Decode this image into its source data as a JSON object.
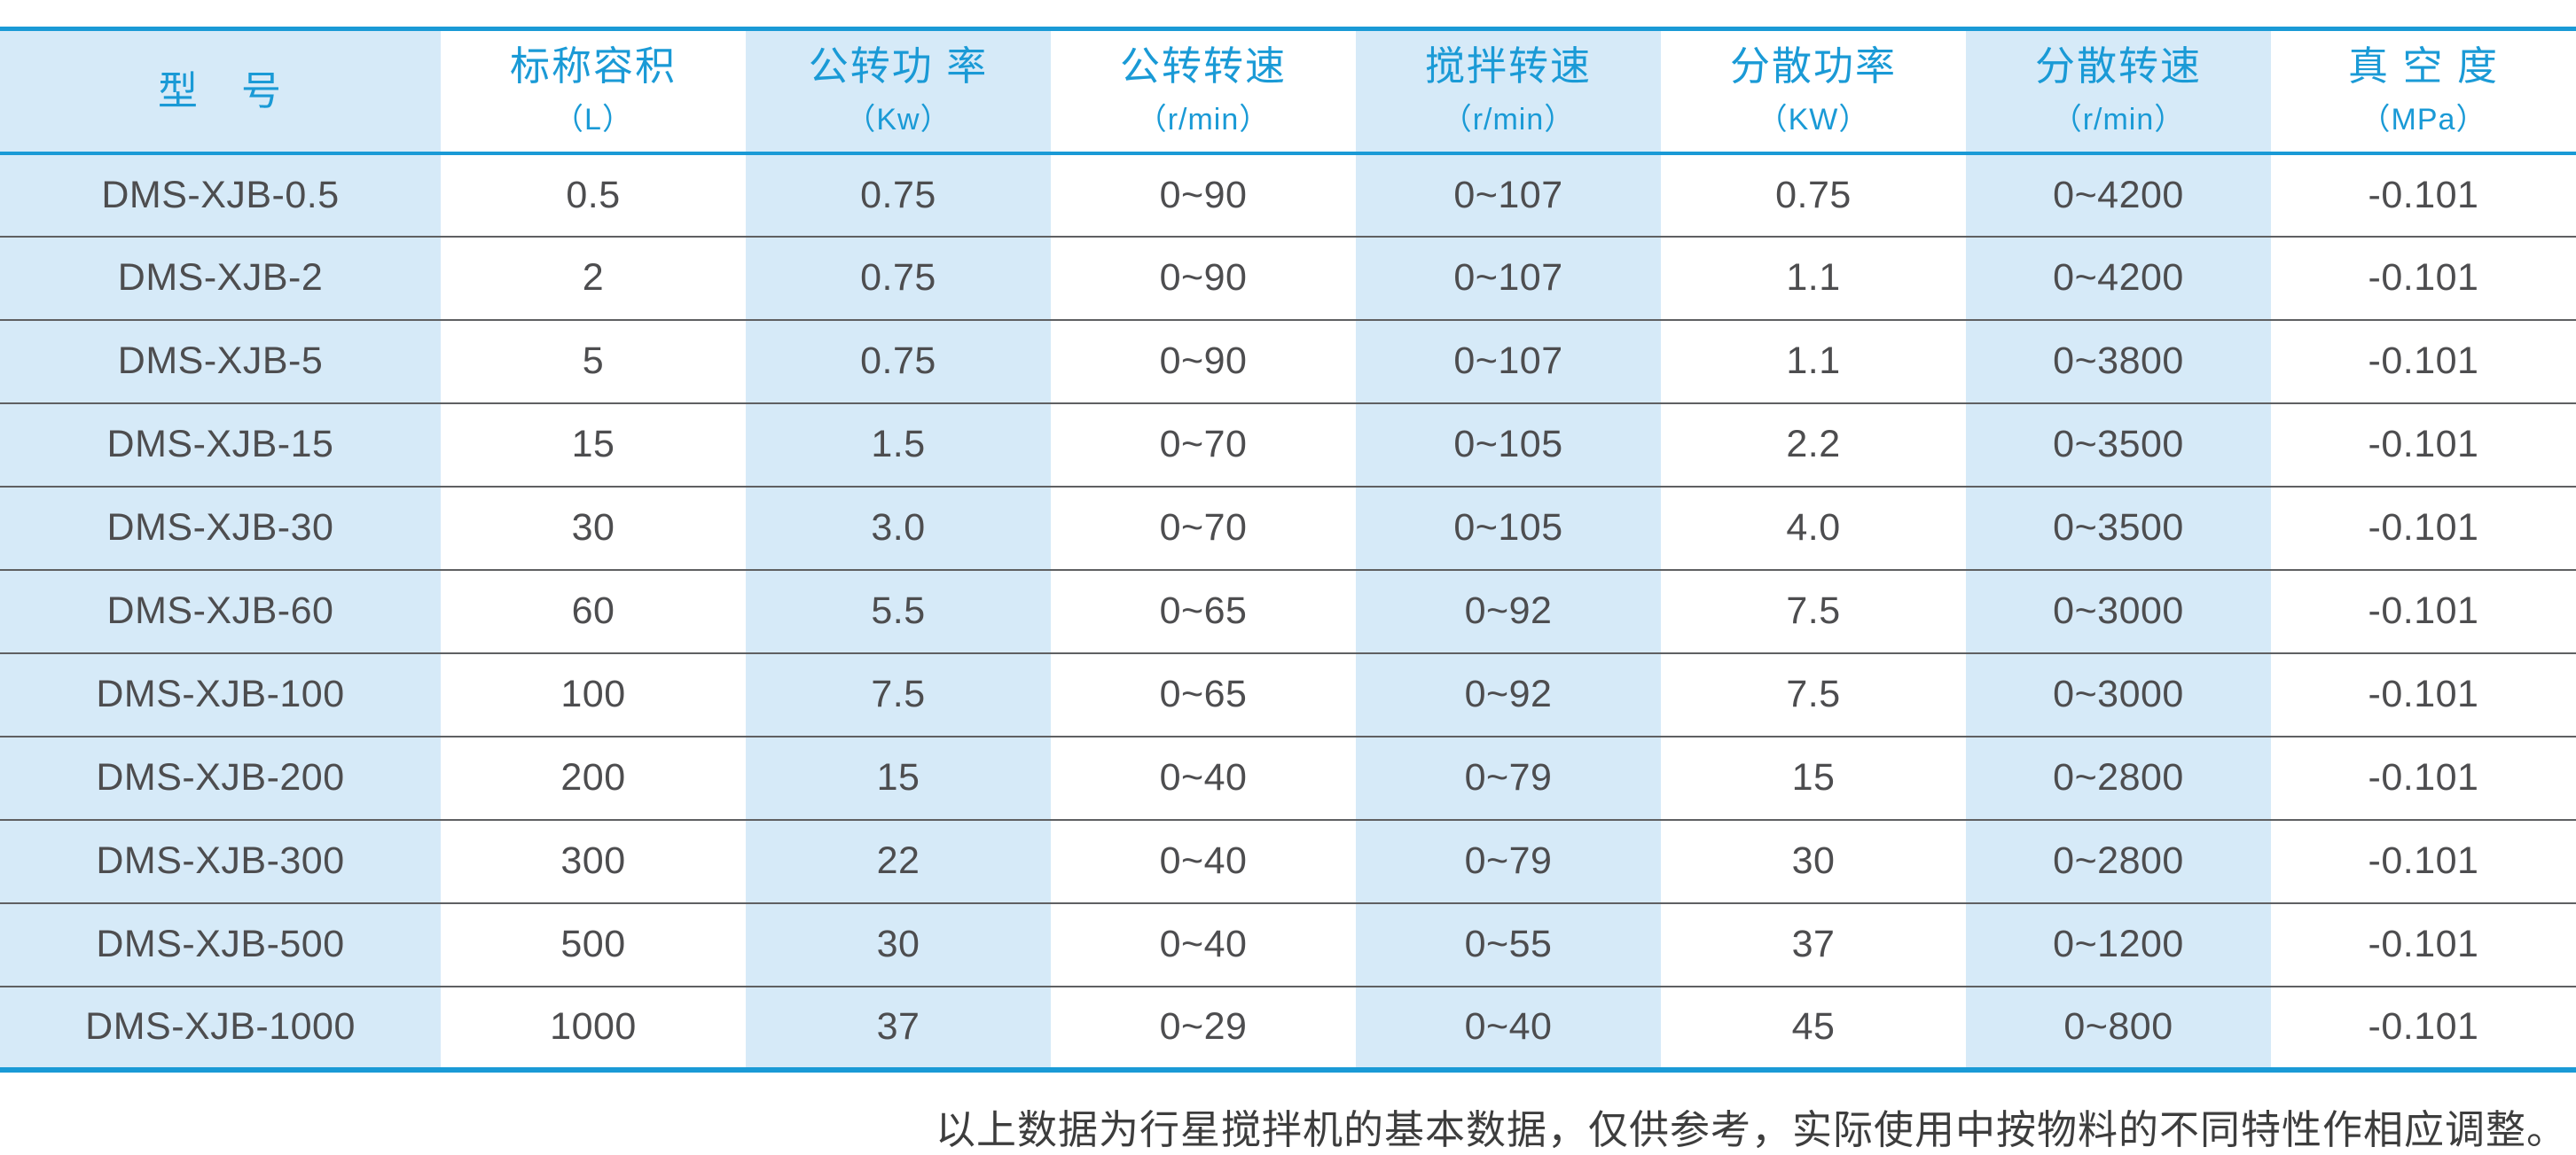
{
  "table": {
    "columns": [
      {
        "key": "model",
        "title": "型　号",
        "unit": ""
      },
      {
        "key": "capacity",
        "title": "标称容积",
        "unit": "（L）"
      },
      {
        "key": "revolution-power",
        "title": "公转功 率",
        "unit": "（Kw）"
      },
      {
        "key": "revolution-speed",
        "title": "公转转速",
        "unit": "（r/min）"
      },
      {
        "key": "stirring-speed",
        "title": "搅拌转速",
        "unit": "（r/min）"
      },
      {
        "key": "dispersion-power",
        "title": "分散功率",
        "unit": "（KW）"
      },
      {
        "key": "dispersion-speed",
        "title": "分散转速",
        "unit": "（r/min）"
      },
      {
        "key": "vacuum-degree",
        "title": "真 空 度",
        "unit": "（MPa）"
      }
    ],
    "rows": [
      [
        "DMS-XJB-0.5",
        "0.5",
        "0.75",
        "0~90",
        "0~107",
        "0.75",
        "0~4200",
        "-0.101"
      ],
      [
        "DMS-XJB-2",
        "2",
        "0.75",
        "0~90",
        "0~107",
        "1.1",
        "0~4200",
        "-0.101"
      ],
      [
        "DMS-XJB-5",
        "5",
        "0.75",
        "0~90",
        "0~107",
        "1.1",
        "0~3800",
        "-0.101"
      ],
      [
        "DMS-XJB-15",
        "15",
        "1.5",
        "0~70",
        "0~105",
        "2.2",
        "0~3500",
        "-0.101"
      ],
      [
        "DMS-XJB-30",
        "30",
        "3.0",
        "0~70",
        "0~105",
        "4.0",
        "0~3500",
        "-0.101"
      ],
      [
        "DMS-XJB-60",
        "60",
        "5.5",
        "0~65",
        "0~92",
        "7.5",
        "0~3000",
        "-0.101"
      ],
      [
        "DMS-XJB-100",
        "100",
        "7.5",
        "0~65",
        "0~92",
        "7.5",
        "0~3000",
        "-0.101"
      ],
      [
        "DMS-XJB-200",
        "200",
        "15",
        "0~40",
        "0~79",
        "15",
        "0~2800",
        "-0.101"
      ],
      [
        "DMS-XJB-300",
        "300",
        "22",
        "0~40",
        "0~79",
        "30",
        "0~2800",
        "-0.101"
      ],
      [
        "DMS-XJB-500",
        "500",
        "30",
        "0~40",
        "0~55",
        "37",
        "0~1200",
        "-0.101"
      ],
      [
        "DMS-XJB-1000",
        "1000",
        "37",
        "0~29",
        "0~40",
        "45",
        "0~800",
        "-0.101"
      ]
    ]
  },
  "footnote": "以上数据为行星搅拌机的基本数据，仅供参考，实际使用中按物料的不同特性作相应调整。",
  "colors": {
    "accent_blue": "#1a9ad6",
    "light_blue_column": "#d6eaf8",
    "row_separator": "#5f6062",
    "data_text": "#4d4d4f",
    "footnote_text": "#3d3d3d"
  }
}
